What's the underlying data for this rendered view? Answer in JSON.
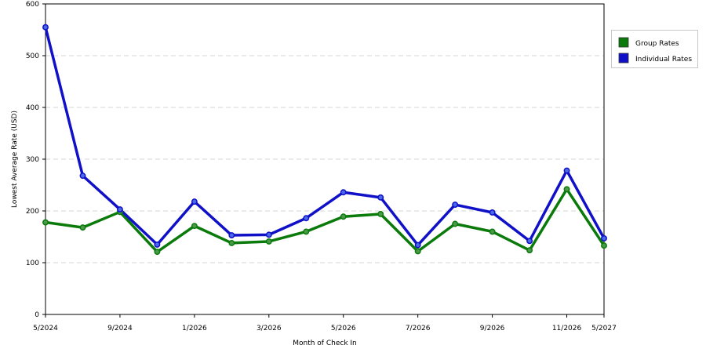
{
  "chart_data": {
    "type": "line",
    "xlabel": "Month of Check In",
    "ylabel": "Lowest Average Rate (USD)",
    "ylim": [
      0,
      600
    ],
    "y_ticks": [
      0,
      100,
      200,
      300,
      400,
      500,
      600
    ],
    "x_tick_labels": [
      "5/2024",
      "9/2024",
      "1/2026",
      "3/2026",
      "5/2026",
      "7/2026",
      "9/2026",
      "11/2026",
      "5/2027"
    ],
    "x_tick_index": [
      0,
      2,
      4,
      6,
      8,
      10,
      12,
      14,
      15
    ],
    "grid": "horizontal-dashed",
    "legend_placement": "right",
    "series": [
      {
        "name": "Group Rates",
        "color": "#0a7a0a",
        "values": [
          178,
          168,
          198,
          121,
          171,
          138,
          141,
          160,
          189,
          194,
          122,
          175,
          160,
          124,
          242,
          133
        ]
      },
      {
        "name": "Individual Rates",
        "color": "#1010c8",
        "values": [
          555,
          268,
          203,
          135,
          218,
          153,
          154,
          186,
          236,
          226,
          134,
          212,
          197,
          142,
          278,
          147
        ]
      }
    ]
  }
}
